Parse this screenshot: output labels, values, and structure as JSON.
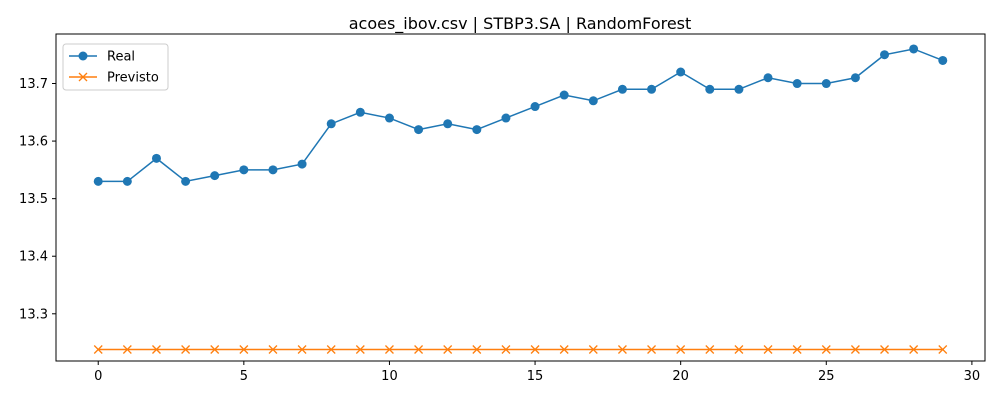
{
  "chart_data": {
    "type": "line",
    "title": "acoes_ibov.csv | STBP3.SA | RandomForest",
    "xlabel": "",
    "ylabel": "",
    "xlim": [
      -1.45,
      30.45
    ],
    "ylim": [
      13.218,
      13.786
    ],
    "xticks": [
      0,
      5,
      10,
      15,
      20,
      25,
      30
    ],
    "yticks": [
      13.3,
      13.4,
      13.5,
      13.6,
      13.7
    ],
    "grid": false,
    "legend_position": "top-left",
    "x": [
      0,
      1,
      2,
      3,
      4,
      5,
      6,
      7,
      8,
      9,
      10,
      11,
      12,
      13,
      14,
      15,
      16,
      17,
      18,
      19,
      20,
      21,
      22,
      23,
      24,
      25,
      26,
      27,
      28,
      29
    ],
    "series": [
      {
        "name": "Real",
        "color": "#1f77b4",
        "marker": "circle",
        "values": [
          13.53,
          13.53,
          13.57,
          13.53,
          13.54,
          13.55,
          13.55,
          13.56,
          13.63,
          13.65,
          13.64,
          13.62,
          13.63,
          13.62,
          13.64,
          13.66,
          13.68,
          13.67,
          13.69,
          13.69,
          13.72,
          13.69,
          13.69,
          13.71,
          13.7,
          13.7,
          13.71,
          13.75,
          13.76,
          13.74
        ]
      },
      {
        "name": "Previsto",
        "color": "#ff7f0e",
        "marker": "x",
        "values": [
          13.238,
          13.238,
          13.238,
          13.238,
          13.238,
          13.238,
          13.238,
          13.238,
          13.238,
          13.238,
          13.238,
          13.238,
          13.238,
          13.238,
          13.238,
          13.238,
          13.238,
          13.238,
          13.238,
          13.238,
          13.238,
          13.238,
          13.238,
          13.238,
          13.238,
          13.238,
          13.238,
          13.238,
          13.238,
          13.238
        ]
      }
    ]
  }
}
